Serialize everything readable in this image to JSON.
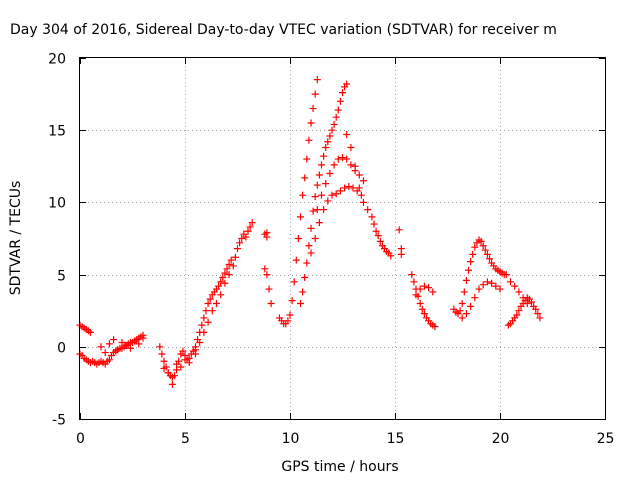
{
  "chart_data": {
    "type": "scatter",
    "title": "Day 304 of 2016, Sidereal Day-to-day VTEC variation (SDTVAR) for receiver m",
    "xlabel": "GPS time / hours",
    "ylabel": "SDTVAR / TECUs",
    "xlim": [
      0,
      25
    ],
    "ylim": [
      -5,
      20
    ],
    "xticks": [
      0,
      5,
      10,
      15,
      20,
      25
    ],
    "yticks": [
      -5,
      0,
      5,
      10,
      15,
      20
    ],
    "grid": true,
    "marker": "+",
    "color": "#ff0000",
    "series": [
      {
        "name": "SDTVAR",
        "x": [
          0.0,
          0.1,
          0.2,
          0.3,
          0.4,
          0.5,
          0.6,
          0.7,
          0.8,
          0.9,
          1.0,
          1.1,
          1.2,
          1.3,
          1.4,
          1.5,
          1.6,
          1.7,
          1.8,
          1.9,
          2.0,
          2.1,
          2.2,
          2.3,
          2.4,
          2.5,
          2.6,
          2.7,
          2.8,
          2.9,
          3.0,
          0.0,
          0.1,
          0.2,
          0.3,
          0.4,
          0.5,
          1.0,
          1.2,
          1.4,
          1.6,
          1.8,
          2.0,
          2.2,
          2.4,
          2.6,
          2.8,
          3.0,
          3.8,
          3.9,
          4.0,
          4.1,
          4.2,
          4.3,
          4.4,
          4.5,
          4.6,
          4.7,
          4.8,
          4.9,
          5.0,
          5.1,
          5.2,
          5.3,
          5.4,
          5.5,
          4.0,
          4.2,
          4.4,
          4.6,
          4.8,
          5.0,
          5.2,
          5.5,
          5.6,
          5.7,
          5.8,
          5.9,
          6.0,
          6.1,
          6.2,
          6.3,
          6.4,
          6.5,
          6.6,
          6.7,
          6.8,
          6.9,
          7.0,
          7.1,
          7.2,
          5.5,
          5.7,
          5.9,
          6.1,
          6.3,
          6.5,
          6.7,
          6.9,
          7.1,
          7.3,
          7.4,
          7.5,
          7.6,
          7.7,
          7.8,
          7.9,
          8.0,
          8.1,
          8.2,
          8.8,
          8.9,
          8.9,
          8.8,
          8.9,
          9.0,
          9.1,
          9.5,
          9.6,
          9.7,
          9.8,
          9.9,
          10.0,
          10.1,
          10.2,
          10.3,
          10.4,
          10.5,
          10.6,
          10.7,
          10.8,
          10.9,
          11.0,
          11.1,
          11.2,
          11.3,
          10.5,
          10.6,
          10.7,
          10.8,
          10.9,
          11.0,
          11.1,
          11.2,
          11.3,
          11.4,
          11.5,
          11.6,
          11.7,
          11.8,
          11.9,
          12.0,
          12.1,
          12.2,
          12.3,
          12.4,
          12.5,
          12.6,
          12.7,
          11.0,
          11.2,
          11.4,
          11.6,
          11.8,
          12.0,
          12.2,
          12.4,
          12.6,
          12.8,
          13.0,
          13.2,
          13.4,
          11.3,
          11.5,
          11.7,
          11.9,
          12.1,
          12.3,
          12.5,
          12.7,
          12.9,
          13.1,
          13.3,
          13.5,
          12.7,
          12.9,
          13.1,
          13.3,
          13.5,
          13.7,
          13.9,
          14.0,
          14.1,
          14.2,
          14.3,
          14.4,
          14.5,
          14.6,
          14.7,
          14.8,
          15.2,
          15.3,
          15.3,
          15.8,
          15.9,
          16.0,
          16.1,
          16.2,
          16.3,
          16.4,
          16.5,
          16.6,
          16.7,
          16.8,
          16.9,
          16.0,
          16.2,
          16.4,
          16.6,
          16.8,
          17.8,
          17.9,
          18.0,
          18.1,
          18.2,
          18.3,
          18.4,
          18.5,
          18.6,
          18.7,
          18.8,
          18.9,
          19.0,
          19.1,
          19.2,
          19.3,
          19.4,
          19.5,
          19.6,
          19.7,
          19.8,
          19.9,
          20.0,
          20.1,
          20.2,
          20.3,
          18.2,
          18.4,
          18.6,
          18.8,
          19.0,
          19.2,
          19.4,
          19.6,
          19.8,
          20.0,
          20.4,
          20.5,
          20.6,
          20.7,
          20.8,
          20.9,
          21.0,
          21.1,
          21.2,
          21.3,
          21.4,
          21.5,
          21.6,
          21.7,
          21.8,
          21.9,
          20.5,
          20.7,
          20.9,
          21.1,
          21.3
        ],
        "y": [
          -0.5,
          -0.6,
          -0.8,
          -0.9,
          -1.0,
          -1.1,
          -1.0,
          -1.1,
          -1.2,
          -1.1,
          -1.0,
          -1.1,
          -1.2,
          -1.0,
          -0.9,
          -0.6,
          -0.4,
          -0.3,
          -0.2,
          -0.1,
          -0.1,
          0.0,
          0.1,
          0.2,
          0.3,
          0.3,
          0.4,
          0.5,
          0.6,
          0.7,
          0.8,
          1.5,
          1.4,
          1.3,
          1.2,
          1.1,
          1.0,
          0.0,
          -0.4,
          0.2,
          0.5,
          -0.2,
          0.3,
          0.1,
          -0.1,
          0.4,
          0.2,
          0.6,
          0.0,
          -0.5,
          -1.0,
          -1.4,
          -1.8,
          -2.0,
          -2.1,
          -2.0,
          -1.6,
          -1.0,
          -0.5,
          -0.3,
          -0.6,
          -0.9,
          -0.8,
          -0.5,
          -0.3,
          -0.5,
          -1.5,
          -1.8,
          -2.6,
          -1.2,
          -1.4,
          -0.9,
          -1.1,
          0.0,
          0.5,
          1.0,
          1.5,
          2.0,
          2.5,
          3.0,
          3.3,
          3.6,
          3.8,
          4.0,
          4.2,
          4.5,
          4.8,
          5.1,
          5.4,
          5.7,
          6.0,
          -0.2,
          0.3,
          1.0,
          1.7,
          2.5,
          3.0,
          3.6,
          4.4,
          5.0,
          5.6,
          6.2,
          6.8,
          7.2,
          7.5,
          7.8,
          7.6,
          8.0,
          8.3,
          8.6,
          7.8,
          7.6,
          7.9,
          5.4,
          5.0,
          4.0,
          3.0,
          2.0,
          1.8,
          1.6,
          1.6,
          1.8,
          2.2,
          3.2,
          4.5,
          6.0,
          7.5,
          9.0,
          10.5,
          11.7,
          13.0,
          14.3,
          15.5,
          16.5,
          17.5,
          18.5,
          3.0,
          3.8,
          4.8,
          5.8,
          7.0,
          8.2,
          9.4,
          10.4,
          11.2,
          11.9,
          12.6,
          13.2,
          13.8,
          14.2,
          14.6,
          15.0,
          15.4,
          15.9,
          16.4,
          17.0,
          17.6,
          18.0,
          18.2,
          6.5,
          7.5,
          8.6,
          9.5,
          10.1,
          10.5,
          10.6,
          10.8,
          11.0,
          11.1,
          11.0,
          10.8,
          10.5,
          9.5,
          10.5,
          11.3,
          12.0,
          12.6,
          13.0,
          13.1,
          13.0,
          12.6,
          12.2,
          11.9,
          11.5,
          14.7,
          13.8,
          12.5,
          11.0,
          10.0,
          9.5,
          9.0,
          8.5,
          8.0,
          7.7,
          7.3,
          7.0,
          6.8,
          6.6,
          6.5,
          6.3,
          8.1,
          6.8,
          6.4,
          5.0,
          4.5,
          4.0,
          3.5,
          3.0,
          2.6,
          2.3,
          2.0,
          1.8,
          1.6,
          1.5,
          1.4,
          3.6,
          4.0,
          4.2,
          4.1,
          3.8,
          2.6,
          2.4,
          2.3,
          2.5,
          3.0,
          3.8,
          4.6,
          5.3,
          5.9,
          6.4,
          6.9,
          7.2,
          7.4,
          7.3,
          7.0,
          6.7,
          6.4,
          6.1,
          5.8,
          5.6,
          5.4,
          5.3,
          5.2,
          5.1,
          5.0,
          5.0,
          2.0,
          2.3,
          2.8,
          3.4,
          4.0,
          4.3,
          4.5,
          4.4,
          4.2,
          4.0,
          1.5,
          1.6,
          1.8,
          2.0,
          2.2,
          2.5,
          2.8,
          3.0,
          3.2,
          3.4,
          3.3,
          3.1,
          2.8,
          2.6,
          2.3,
          2.0,
          4.5,
          4.2,
          3.8,
          3.4,
          3.0
        ]
      }
    ]
  }
}
